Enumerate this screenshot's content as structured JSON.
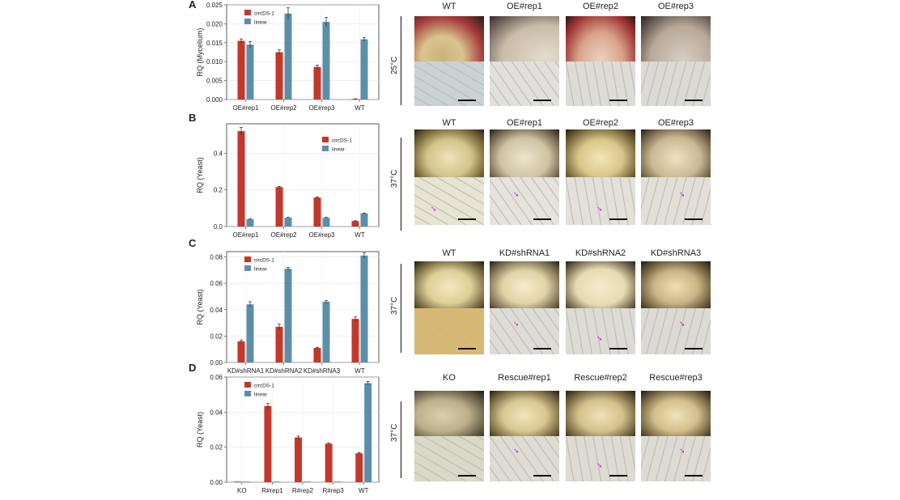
{
  "panels": [
    {
      "letter": "A",
      "temperature": "25°C",
      "chart_data": {
        "type": "bar",
        "categories": [
          "OE#rep1",
          "OE#rep2",
          "OE#rep3",
          "WT"
        ],
        "series": [
          {
            "name": "circDS-1",
            "values": [
              0.0155,
              0.0125,
              0.0086,
              0.0001
            ],
            "errors": [
              0.0005,
              0.0006,
              0.0005,
              0.0001
            ],
            "color": "#c0392b"
          },
          {
            "name": "linear",
            "values": [
              0.0145,
              0.0227,
              0.0205,
              0.0159
            ],
            "errors": [
              0.0008,
              0.0015,
              0.0012,
              0.0005
            ],
            "color": "#5b8fa8"
          }
        ],
        "ylabel": "RQ (Mycelium)",
        "ylim": [
          0,
          0.025
        ],
        "yticks": [
          "0.000",
          "0.005",
          "0.010",
          "0.015",
          "0.020",
          "0.025"
        ],
        "legend": "top-left"
      },
      "photo_labels": [
        "WT",
        "OE#rep1",
        "OE#rep2",
        "OE#rep3"
      ]
    },
    {
      "letter": "B",
      "temperature": "37°C",
      "chart_data": {
        "type": "bar",
        "categories": [
          "OE#rep1",
          "OE#rep2",
          "OE#rep3",
          "WT"
        ],
        "series": [
          {
            "name": "circDS-1",
            "values": [
              0.52,
              0.215,
              0.158,
              0.03
            ],
            "errors": [
              0.02,
              0.004,
              0.004,
              0.002
            ],
            "color": "#c0392b"
          },
          {
            "name": "linear",
            "values": [
              0.04,
              0.048,
              0.048,
              0.072
            ],
            "errors": [
              0.002,
              0.002,
              0.002,
              0.002
            ],
            "color": "#5b8fa8"
          }
        ],
        "ylabel": "RQ (Yeast)",
        "ylim": [
          0,
          0.56
        ],
        "yticks": [
          "0.0",
          "0.2",
          "0.4"
        ],
        "ytick_values": [
          0,
          0.2,
          0.4
        ],
        "legend": "top-right"
      },
      "photo_labels": [
        "WT",
        "OE#rep1",
        "OE#rep2",
        "OE#rep3"
      ]
    },
    {
      "letter": "C",
      "temperature": "37°C",
      "chart_data": {
        "type": "bar",
        "categories": [
          "KD#shRNA1",
          "KD#shRNA2",
          "KD#shRNA3",
          "WT"
        ],
        "series": [
          {
            "name": "circDS-1",
            "values": [
              0.016,
              0.027,
              0.011,
              0.033
            ],
            "errors": [
              0.001,
              0.002,
              0.0005,
              0.0015
            ],
            "color": "#c0392b"
          },
          {
            "name": "linear",
            "values": [
              0.044,
              0.071,
              0.046,
              0.081
            ],
            "errors": [
              0.002,
              0.001,
              0.001,
              0.002
            ],
            "color": "#5b8fa8"
          }
        ],
        "ylabel": "RQ (Yeast)",
        "ylim": [
          0,
          0.084
        ],
        "yticks": [
          "0.00",
          "0.02",
          "0.04",
          "0.06",
          "0.08"
        ],
        "ytick_values": [
          0,
          0.02,
          0.04,
          0.06,
          0.08
        ],
        "legend": "top-left"
      },
      "photo_labels": [
        "WT",
        "KD#shRNA1",
        "KD#shRNA2",
        "KD#shRNA3"
      ]
    },
    {
      "letter": "D",
      "temperature": "37°C",
      "chart_data": {
        "type": "bar",
        "categories": [
          "KO",
          "R#rep1",
          "R#rep2",
          "R#rep3",
          "WT"
        ],
        "series": [
          {
            "name": "circDS-1",
            "values": [
              0,
              0.0435,
              0.0255,
              0.022,
              0.0165
            ],
            "errors": [
              0,
              0.0015,
              0.0008,
              0.0004,
              0.0004
            ],
            "color": "#c0392b"
          },
          {
            "name": "linear",
            "values": [
              0,
              0,
              0,
              0,
              0.0565
            ],
            "errors": [
              0,
              0,
              0,
              0,
              0.001
            ],
            "color": "#5b8fa8"
          }
        ],
        "ylabel": "RQ (Yeast)",
        "ylim": [
          0,
          0.06
        ],
        "yticks": [
          "0.00",
          "0.02",
          "0.04",
          "0.06"
        ],
        "ytick_values": [
          0,
          0.02,
          0.04,
          0.06
        ],
        "legend": "top-left"
      },
      "photo_labels": [
        "KO",
        "Rescue#rep1",
        "Rescue#rep2",
        "Rescue#rep3"
      ]
    }
  ]
}
